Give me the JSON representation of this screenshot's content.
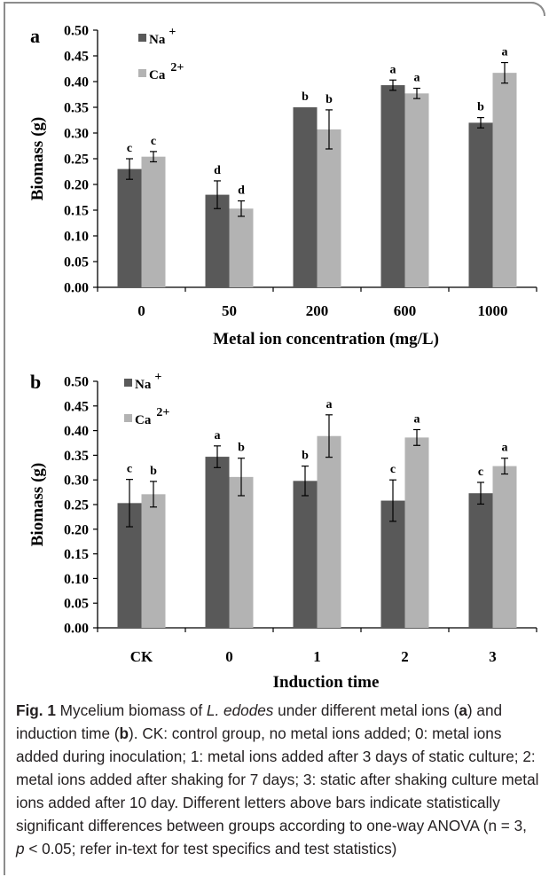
{
  "colors": {
    "na": "#595959",
    "ca": "#b3b3b3",
    "axis": "#000000",
    "frame": "#8c8c8c"
  },
  "chart_data": [
    {
      "type": "bar",
      "panel_label": "a",
      "categories": [
        "0",
        "50",
        "200",
        "600",
        "1000"
      ],
      "series": [
        {
          "name": "Na⁺",
          "values": [
            0.23,
            0.18,
            0.35,
            0.393,
            0.32
          ],
          "errors": [
            0.02,
            0.027,
            0.0,
            0.01,
            0.01
          ],
          "letters": [
            "c",
            "d",
            "b",
            "a",
            "b"
          ]
        },
        {
          "name": "Ca²⁺",
          "values": [
            0.254,
            0.153,
            0.307,
            0.377,
            0.417
          ],
          "errors": [
            0.01,
            0.015,
            0.038,
            0.01,
            0.02
          ],
          "letters": [
            "c",
            "d",
            "b",
            "a",
            "a"
          ]
        }
      ],
      "yticks": [
        "0.00",
        "0.05",
        "0.10",
        "0.15",
        "0.20",
        "0.25",
        "0.30",
        "0.35",
        "0.40",
        "0.45",
        "0.50"
      ],
      "ylim": [
        0,
        0.5
      ],
      "ylabel": "Biomass (g)",
      "xlabel": "Metal ion concentration (mg/L)",
      "legend_position": "top-left",
      "grid": false
    },
    {
      "type": "bar",
      "panel_label": "b",
      "categories": [
        "CK",
        "0",
        "1",
        "2",
        "3"
      ],
      "series": [
        {
          "name": "Na⁺",
          "values": [
            0.253,
            0.347,
            0.298,
            0.258,
            0.273
          ],
          "errors": [
            0.048,
            0.022,
            0.03,
            0.042,
            0.022
          ],
          "letters": [
            "c",
            "a",
            "b",
            "c",
            "c"
          ]
        },
        {
          "name": "Ca²⁺",
          "values": [
            0.271,
            0.306,
            0.389,
            0.386,
            0.328
          ],
          "errors": [
            0.026,
            0.038,
            0.043,
            0.016,
            0.016
          ],
          "letters": [
            "b",
            "b",
            "a",
            "a",
            "a"
          ]
        }
      ],
      "yticks": [
        "0.00",
        "0.05",
        "0.10",
        "0.15",
        "0.20",
        "0.25",
        "0.30",
        "0.35",
        "0.40",
        "0.45",
        "0.50"
      ],
      "ylim": [
        0,
        0.5
      ],
      "ylabel": "Biomass (g)",
      "xlabel": "Induction time",
      "legend_position": "top-left",
      "grid": false
    }
  ],
  "caption": {
    "fig": "Fig. 1",
    "t1": "  Mycelium biomass of ",
    "species": "L. edodes",
    "t2": " under different metal ions (",
    "a": "a",
    "t3": ") and induction time (",
    "b": "b",
    "t4": "). CK: control group, no metal ions added; 0: metal ions added during inoculation; 1: metal ions added after 3 days of static culture; 2: metal ions added after shaking for 7 days; 3: static after shaking culture metal ions added after 10 day. Different letters above bars indicate statistically significant differences between groups according to one-way ANOVA (n = 3, ",
    "p": "p",
    "t5": " < 0.05; refer in-text for test specifics and test statistics)"
  }
}
